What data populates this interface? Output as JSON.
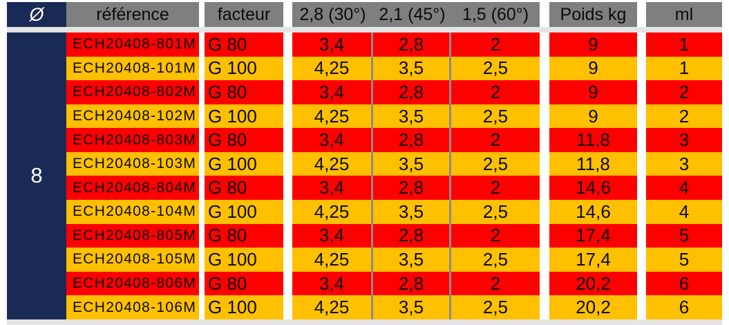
{
  "table": {
    "headers": [
      {
        "key": "diametre",
        "label": "Ø"
      },
      {
        "key": "reference",
        "label": "référence"
      },
      {
        "key": "facteur",
        "label": "facteur"
      },
      {
        "key": "f30",
        "label": "2,8 (30°)"
      },
      {
        "key": "f45",
        "label": "2,1 (45°)"
      },
      {
        "key": "f60",
        "label": "1,5 (60°)"
      },
      {
        "key": "poids",
        "label": "Poids kg"
      },
      {
        "key": "ml",
        "label": "ml"
      }
    ],
    "diameter_value": "8",
    "rows": [
      {
        "reference": "ECH20408-801M",
        "facteur": "G 80",
        "f30": "3,4",
        "f45": "2,8",
        "f60": "2",
        "poids": "9",
        "ml": "1",
        "highlight": "red"
      },
      {
        "reference": "ECH20408-101M",
        "facteur": "G 100",
        "f30": "4,25",
        "f45": "3,5",
        "f60": "2,5",
        "poids": "9",
        "ml": "1",
        "highlight": "orange"
      },
      {
        "reference": "ECH20408-802M",
        "facteur": "G 80",
        "f30": "3,4",
        "f45": "2,8",
        "f60": "2",
        "poids": "9",
        "ml": "2",
        "highlight": "red"
      },
      {
        "reference": "ECH20408-102M",
        "facteur": "G 100",
        "f30": "4,25",
        "f45": "3,5",
        "f60": "2,5",
        "poids": "9",
        "ml": "2",
        "highlight": "orange"
      },
      {
        "reference": "ECH20408-803M",
        "facteur": "G 80",
        "f30": "3,4",
        "f45": "2,8",
        "f60": "2",
        "poids": "11,8",
        "ml": "3",
        "highlight": "red"
      },
      {
        "reference": "ECH20408-103M",
        "facteur": "G 100",
        "f30": "4,25",
        "f45": "3,5",
        "f60": "2,5",
        "poids": "11,8",
        "ml": "3",
        "highlight": "orange"
      },
      {
        "reference": "ECH20408-804M",
        "facteur": "G 80",
        "f30": "3,4",
        "f45": "2,8",
        "f60": "2",
        "poids": "14,6",
        "ml": "4",
        "highlight": "red"
      },
      {
        "reference": "ECH20408-104M",
        "facteur": "G 100",
        "f30": "4,25",
        "f45": "3,5",
        "f60": "2,5",
        "poids": "14,6",
        "ml": "4",
        "highlight": "orange"
      },
      {
        "reference": "ECH20408-805M",
        "facteur": "G 80",
        "f30": "3,4",
        "f45": "2,8",
        "f60": "2",
        "poids": "17,4",
        "ml": "5",
        "highlight": "red"
      },
      {
        "reference": "ECH20408-105M",
        "facteur": "G 100",
        "f30": "4,25",
        "f45": "3,5",
        "f60": "2,5",
        "poids": "17,4",
        "ml": "5",
        "highlight": "orange"
      },
      {
        "reference": "ECH20408-806M",
        "facteur": "G 80",
        "f30": "3,4",
        "f45": "2,8",
        "f60": "2",
        "poids": "20,2",
        "ml": "6",
        "highlight": "red"
      },
      {
        "reference": "ECH20408-106M",
        "facteur": "G 100",
        "f30": "4,25",
        "f45": "3,5",
        "f60": "2,5",
        "poids": "20,2",
        "ml": "6",
        "highlight": "orange"
      }
    ]
  },
  "colors": {
    "navy": "#1a2a56",
    "header_gray": "#7f7f7f",
    "row_red": "#ff0000",
    "row_orange": "#ffc000",
    "band_gray": "#e4e4e4",
    "divider_gray": "#8c8c8c",
    "text_dark": "#0b0b0b",
    "text_white": "#ffffff"
  }
}
